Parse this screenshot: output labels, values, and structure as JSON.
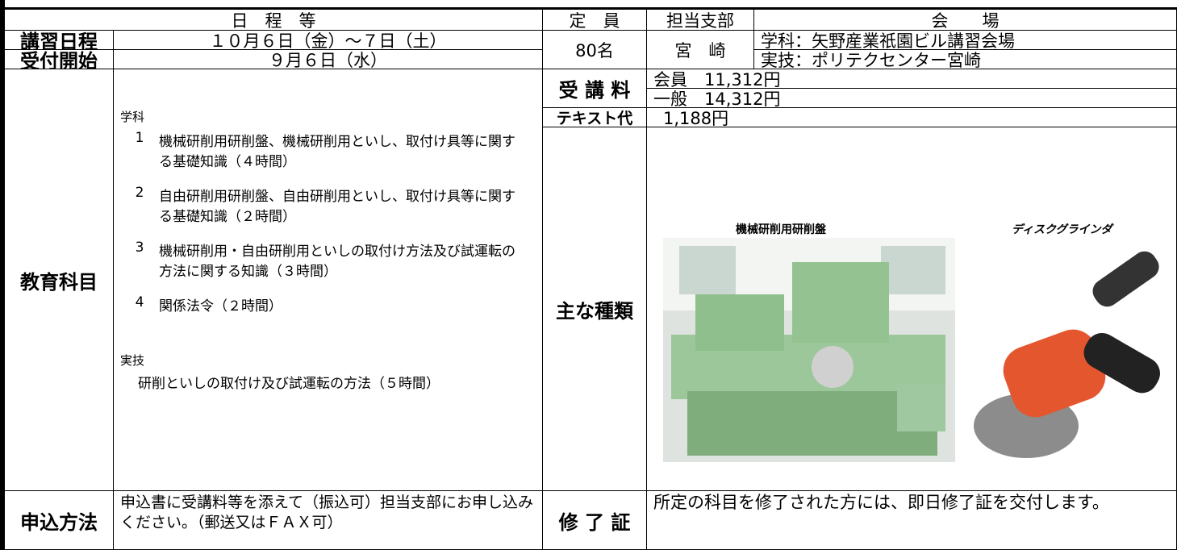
{
  "header": {
    "schedule": "日　程　等",
    "capacity": "定　員",
    "branch": "担当支部",
    "venue": "会　　場"
  },
  "course_dates": {
    "label": "講習日程",
    "value": "１０月６日（金）～７日（土）"
  },
  "reception": {
    "label": "受付開始",
    "value": "９月６日（水）"
  },
  "capacity": "80名",
  "branch": "宮　崎",
  "venue": {
    "lecture": "学科：矢野産業祇園ビル講習会場",
    "practical": "実技：ポリテクセンター宮崎"
  },
  "fee": {
    "label": "受 講 料",
    "member": "会員　11,312円",
    "general": "一般　14,312円"
  },
  "text_fee": {
    "label": "テキスト代",
    "value": "1,188円"
  },
  "subjects": {
    "label": "教育科目",
    "lecture_heading": "学科",
    "lecture_items": [
      {
        "number": "1",
        "text": "機械研削用研削盤、機械研削用といし、取付け具等に関する基礎知識（４時間）"
      },
      {
        "number": "2",
        "text": "自由研削用研削盤、自由研削用といし、取付け具等に関する基礎知識（２時間）"
      },
      {
        "number": "3",
        "text": "機械研削用・自由研削用といしの取付け方法及び試運転の方法に関する知識（３時間）"
      },
      {
        "number": "4",
        "text": "関係法令（２時間）"
      }
    ],
    "practical_heading": "実技",
    "practical_text": "研削といしの取付け及び試運転の方法（５時間）"
  },
  "types": {
    "label": "主な種類",
    "items": [
      {
        "caption": "機械研削用研削盤"
      },
      {
        "caption": "ディスクグラインダ"
      }
    ]
  },
  "application": {
    "label": "申込方法",
    "text": "申込書に受講料等を添えて（振込可）担当支部にお申し込みください。（郵送又はＦＡＸ可）"
  },
  "certificate": {
    "label": "修 了 証",
    "text": "所定の科目を修了された方には、即日修了証を交付します。"
  }
}
